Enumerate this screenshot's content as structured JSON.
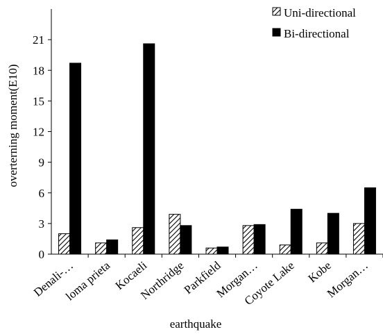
{
  "chart_data": {
    "type": "bar",
    "xlabel": "earthquake",
    "ylabel": "overterning moment(E10)",
    "ylim": [
      0,
      24
    ],
    "yticks": [
      0,
      3,
      6,
      9,
      12,
      15,
      18,
      21
    ],
    "grid": false,
    "legend_position": "top-right",
    "categories": [
      "Denali-…",
      "loma prieta",
      "Kocaeli",
      "Northridge",
      "Parkfield",
      "Morgan…",
      "Coyote Lake",
      "Kobe",
      "Morgan…"
    ],
    "series": [
      {
        "name": "Uni-directional",
        "pattern": "hatched",
        "values": [
          2.0,
          1.1,
          2.6,
          3.9,
          0.6,
          2.8,
          0.9,
          1.1,
          3.0
        ]
      },
      {
        "name": "Bi-directional",
        "pattern": "solid",
        "values": [
          18.7,
          1.4,
          20.6,
          2.8,
          0.7,
          2.9,
          4.4,
          4.0,
          6.5
        ]
      }
    ]
  }
}
